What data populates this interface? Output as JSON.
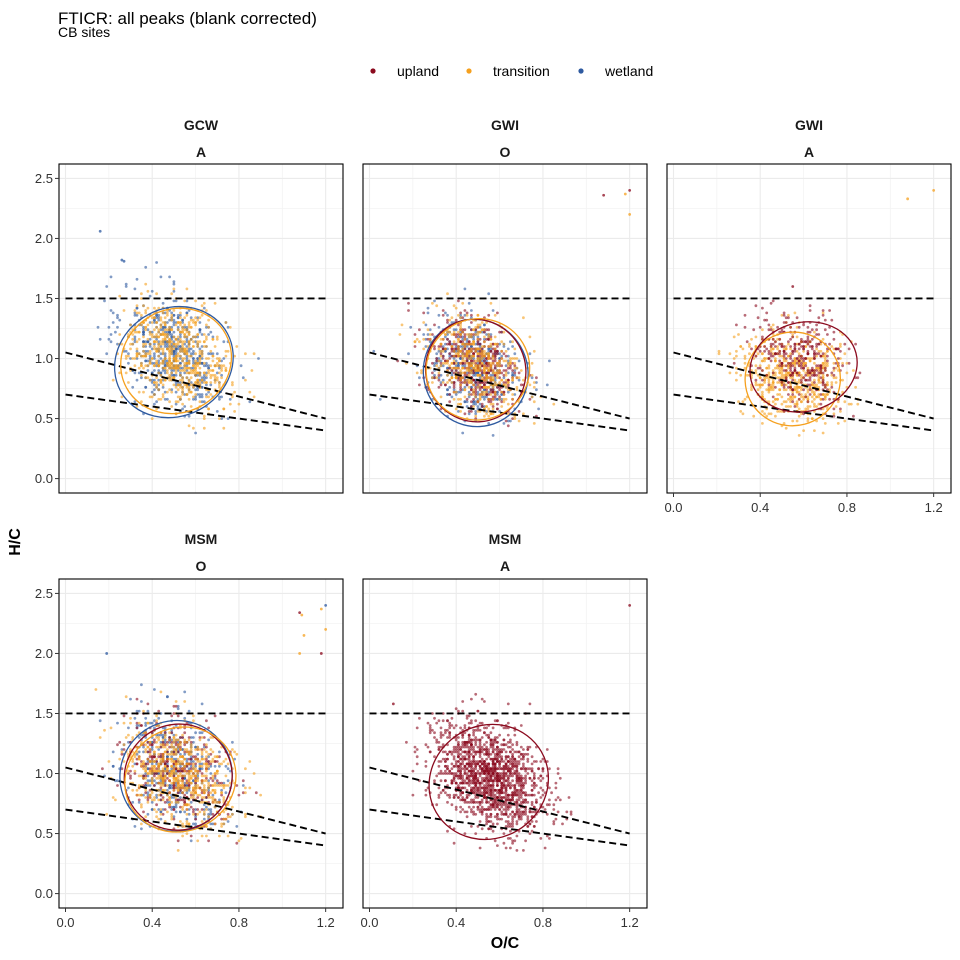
{
  "figure": {
    "title": "FTICR: all peaks (blank corrected)",
    "subtitle": "CB sites"
  },
  "legend": {
    "items": [
      {
        "label": "upland",
        "color": "#8b0a1e"
      },
      {
        "label": "transition",
        "color": "#f5a01e"
      },
      {
        "label": "wetland",
        "color": "#2e5aa0"
      }
    ]
  },
  "chart_data": {
    "type": "scatter",
    "facet": "site ~ horizon",
    "xlabel": "O/C",
    "ylabel": "H/C",
    "xlim": [
      -0.03,
      1.28
    ],
    "ylim": [
      -0.12,
      2.62
    ],
    "x_ticks": [
      "0.0",
      "0.4",
      "0.8",
      "1.2"
    ],
    "y_ticks": [
      "0.0",
      "0.5",
      "1.0",
      "1.5",
      "2.0",
      "2.5"
    ],
    "grid": true,
    "legend_position": "top",
    "reference_lines": [
      {
        "type": "hline",
        "y": 1.5,
        "style": "dashed"
      },
      {
        "type": "segment",
        "x": [
          0,
          1.2
        ],
        "y": [
          1.05,
          0.5
        ],
        "style": "dashed"
      },
      {
        "type": "segment",
        "x": [
          0,
          1.2
        ],
        "y": [
          0.7,
          0.4
        ],
        "style": "dashed"
      }
    ],
    "panels": [
      {
        "strip1": "GCW",
        "strip2": "A",
        "series": [
          {
            "name": "wetland",
            "n": 550,
            "mean": [
              0.5,
              1.05
            ],
            "sd": [
              0.12,
              0.24
            ],
            "rho": -0.3
          },
          {
            "name": "transition",
            "n": 650,
            "mean": [
              0.52,
              1.02
            ],
            "sd": [
              0.12,
              0.22
            ],
            "rho": -0.3
          }
        ],
        "ellipses": [
          {
            "name": "wetland",
            "cx": 0.5,
            "cy": 0.97,
            "rx": 0.28,
            "ry": 0.45,
            "angle": -28
          },
          {
            "name": "transition",
            "cx": 0.51,
            "cy": 0.98,
            "rx": 0.26,
            "ry": 0.43,
            "angle": -28
          }
        ],
        "outliers": [
          {
            "x": 0.16,
            "y": 2.06,
            "series": "wetland"
          },
          {
            "x": 0.26,
            "y": 1.82,
            "series": "wetland"
          },
          {
            "x": 0.27,
            "y": 1.81,
            "series": "wetland"
          }
        ]
      },
      {
        "strip1": "GWI",
        "strip2": "O",
        "series": [
          {
            "name": "wetland",
            "n": 450,
            "mean": [
              0.48,
              0.93
            ],
            "sd": [
              0.11,
              0.21
            ],
            "rho": -0.35
          },
          {
            "name": "upland",
            "n": 450,
            "mean": [
              0.48,
              0.94
            ],
            "sd": [
              0.11,
              0.21
            ],
            "rho": -0.35
          },
          {
            "name": "transition",
            "n": 500,
            "mean": [
              0.5,
              0.94
            ],
            "sd": [
              0.11,
              0.21
            ],
            "rho": -0.35
          }
        ],
        "ellipses": [
          {
            "name": "wetland",
            "cx": 0.49,
            "cy": 0.88,
            "rx": 0.24,
            "ry": 0.45,
            "angle": -25
          },
          {
            "name": "upland",
            "cx": 0.49,
            "cy": 0.9,
            "rx": 0.23,
            "ry": 0.43,
            "angle": -25
          },
          {
            "name": "transition",
            "cx": 0.5,
            "cy": 0.91,
            "rx": 0.24,
            "ry": 0.42,
            "angle": -25
          }
        ],
        "outliers": [
          {
            "x": 1.08,
            "y": 2.36,
            "series": "upland"
          },
          {
            "x": 1.2,
            "y": 2.4,
            "series": "upland"
          },
          {
            "x": 1.18,
            "y": 2.37,
            "series": "transition"
          },
          {
            "x": 1.2,
            "y": 2.2,
            "series": "transition"
          }
        ]
      },
      {
        "strip1": "GWI",
        "strip2": "A",
        "series": [
          {
            "name": "transition",
            "n": 600,
            "mean": [
              0.54,
              0.85
            ],
            "sd": [
              0.12,
              0.2
            ],
            "rho": -0.2
          },
          {
            "name": "upland",
            "n": 350,
            "mean": [
              0.6,
              1.0
            ],
            "sd": [
              0.11,
              0.18
            ],
            "rho": -0.25
          }
        ],
        "ellipses": [
          {
            "name": "transition",
            "cx": 0.55,
            "cy": 0.83,
            "rx": 0.22,
            "ry": 0.39,
            "angle": -15
          },
          {
            "name": "upland",
            "cx": 0.6,
            "cy": 0.93,
            "rx": 0.25,
            "ry": 0.37,
            "angle": -15
          }
        ],
        "outliers": [
          {
            "x": 1.08,
            "y": 2.33,
            "series": "transition"
          },
          {
            "x": 1.2,
            "y": 2.4,
            "series": "transition"
          },
          {
            "x": 0.55,
            "y": 1.6,
            "series": "upland"
          }
        ]
      },
      {
        "strip1": "MSM",
        "strip2": "O",
        "series": [
          {
            "name": "wetland",
            "n": 450,
            "mean": [
              0.5,
              1.05
            ],
            "sd": [
              0.12,
              0.23
            ],
            "rho": -0.3
          },
          {
            "name": "upland",
            "n": 350,
            "mean": [
              0.51,
              1.02
            ],
            "sd": [
              0.12,
              0.22
            ],
            "rho": -0.3
          },
          {
            "name": "transition",
            "n": 650,
            "mean": [
              0.53,
              0.98
            ],
            "sd": [
              0.13,
              0.22
            ],
            "rho": -0.3
          }
        ],
        "ellipses": [
          {
            "name": "wetland",
            "cx": 0.51,
            "cy": 0.98,
            "rx": 0.26,
            "ry": 0.46,
            "angle": -25
          },
          {
            "name": "upland",
            "cx": 0.52,
            "cy": 0.97,
            "rx": 0.25,
            "ry": 0.44,
            "angle": -25
          },
          {
            "name": "transition",
            "cx": 0.53,
            "cy": 0.95,
            "rx": 0.26,
            "ry": 0.43,
            "angle": -25
          }
        ],
        "outliers": [
          {
            "x": 0.19,
            "y": 2.0,
            "series": "wetland"
          },
          {
            "x": 1.08,
            "y": 2.34,
            "series": "upland"
          },
          {
            "x": 1.09,
            "y": 2.32,
            "series": "transition"
          },
          {
            "x": 1.08,
            "y": 2.0,
            "series": "transition"
          },
          {
            "x": 1.1,
            "y": 2.15,
            "series": "transition"
          },
          {
            "x": 1.18,
            "y": 2.0,
            "series": "upland"
          },
          {
            "x": 1.2,
            "y": 2.4,
            "series": "wetland"
          },
          {
            "x": 1.2,
            "y": 2.2,
            "series": "transition"
          },
          {
            "x": 1.18,
            "y": 2.37,
            "series": "transition"
          }
        ]
      },
      {
        "strip1": "MSM",
        "strip2": "A",
        "series": [
          {
            "name": "upland",
            "n": 1500,
            "mean": [
              0.55,
              0.97
            ],
            "sd": [
              0.13,
              0.22
            ],
            "rho": -0.35
          }
        ],
        "ellipses": [
          {
            "name": "upland",
            "cx": 0.55,
            "cy": 0.93,
            "rx": 0.28,
            "ry": 0.47,
            "angle": -30
          }
        ],
        "outliers": [
          {
            "x": 0.11,
            "y": 1.58,
            "series": "upland"
          },
          {
            "x": 1.2,
            "y": 2.4,
            "series": "upland"
          }
        ]
      }
    ]
  }
}
